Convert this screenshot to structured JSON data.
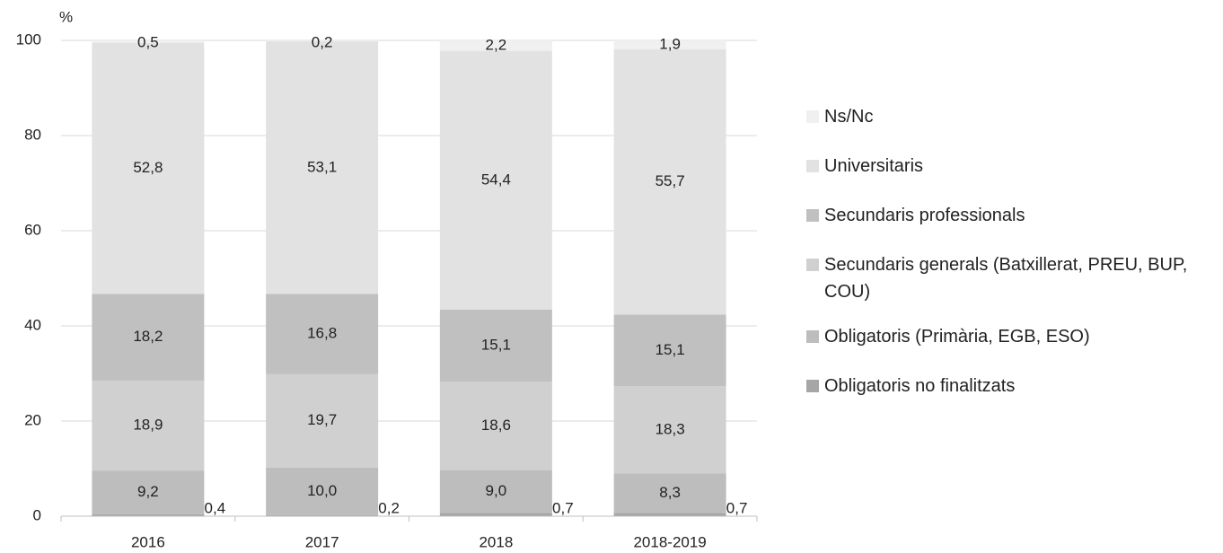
{
  "chart_data": {
    "type": "stacked_bar",
    "y_label": "%",
    "categories": [
      "2016",
      "2017",
      "2018",
      "2018-2019"
    ],
    "series": [
      {
        "name": "Obligatoris no finalitzats",
        "color": "#a6a6a6",
        "values": [
          0.4,
          0.2,
          0.7,
          0.7
        ],
        "value_labels": [
          "0,4",
          "0,2",
          "0,7",
          "0,7"
        ]
      },
      {
        "name": "Obligatoris (Primària, EGB, ESO)",
        "color": "#bdbdbd",
        "values": [
          9.2,
          10.0,
          9.0,
          8.3
        ],
        "value_labels": [
          "9,2",
          "10,0",
          "9,0",
          "8,3"
        ]
      },
      {
        "name": "Secundaris generals (Batxillerat, PREU, BUP, COU)",
        "color": "#d0d0d0",
        "values": [
          18.9,
          19.7,
          18.6,
          18.3
        ],
        "value_labels": [
          "18,9",
          "19,7",
          "18,6",
          "18,3"
        ]
      },
      {
        "name": "Secundaris professionals",
        "color": "#c0c0c0",
        "values": [
          18.2,
          16.8,
          15.1,
          15.1
        ],
        "value_labels": [
          "18,2",
          "16,8",
          "15,1",
          "15,1"
        ]
      },
      {
        "name": "Universitaris",
        "color": "#e2e2e2",
        "values": [
          52.8,
          53.1,
          54.4,
          55.7
        ],
        "value_labels": [
          "52,8",
          "53,1",
          "54,4",
          "55,7"
        ]
      },
      {
        "name": "Ns/Nc",
        "color": "#f0f0f0",
        "values": [
          0.5,
          0.2,
          2.2,
          1.9
        ],
        "value_labels": [
          "0,5",
          "0,2",
          "2,2",
          "1,9"
        ]
      }
    ],
    "ylim": [
      0,
      100
    ],
    "yticks": [
      0,
      20,
      40,
      60,
      80,
      100
    ],
    "grid": true,
    "legend": "right"
  }
}
